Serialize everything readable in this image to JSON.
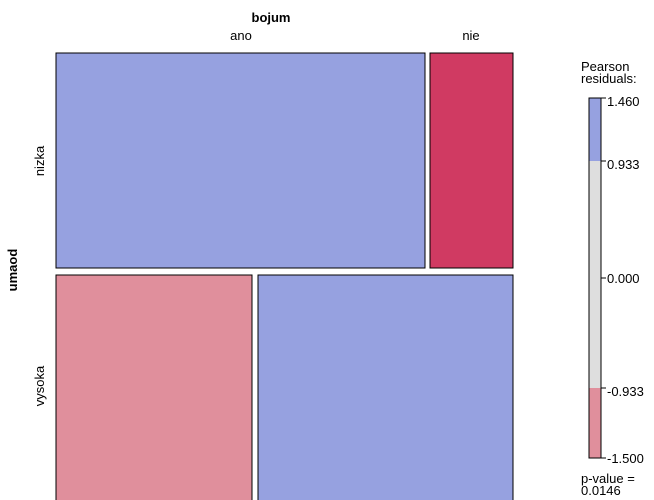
{
  "chart_data": {
    "type": "mosaic",
    "col_var": "bojum",
    "row_var": "umaod",
    "col_levels": [
      "ano",
      "nie"
    ],
    "row_levels": [
      "nizka",
      "vysoka"
    ],
    "col_proportions_by_row": {
      "nizka": [
        0.8,
        0.2
      ],
      "vysoka": [
        0.43,
        0.57
      ]
    },
    "row_proportions": [
      0.515,
      0.485
    ],
    "residual_class": [
      [
        "positive_strong",
        "negative_strong"
      ],
      [
        "negative",
        "positive_strong"
      ]
    ],
    "legend": {
      "title_line1": "Pearson",
      "title_line2": "residuals:",
      "ticks": [
        "1.460",
        "0.933",
        "0.000",
        "-0.933",
        "-1.500"
      ],
      "range": [
        -1.5,
        1.46
      ],
      "thresholds": [
        -0.933,
        0.933
      ]
    },
    "pvalue_line1": "p-value =",
    "pvalue_line2": "0.0146",
    "colors": {
      "positive_strong": "#96a1e0",
      "negative_strong": "#d03a62",
      "negative": "#e08f9c",
      "neutral": "#dedede",
      "border": "#000000"
    }
  }
}
